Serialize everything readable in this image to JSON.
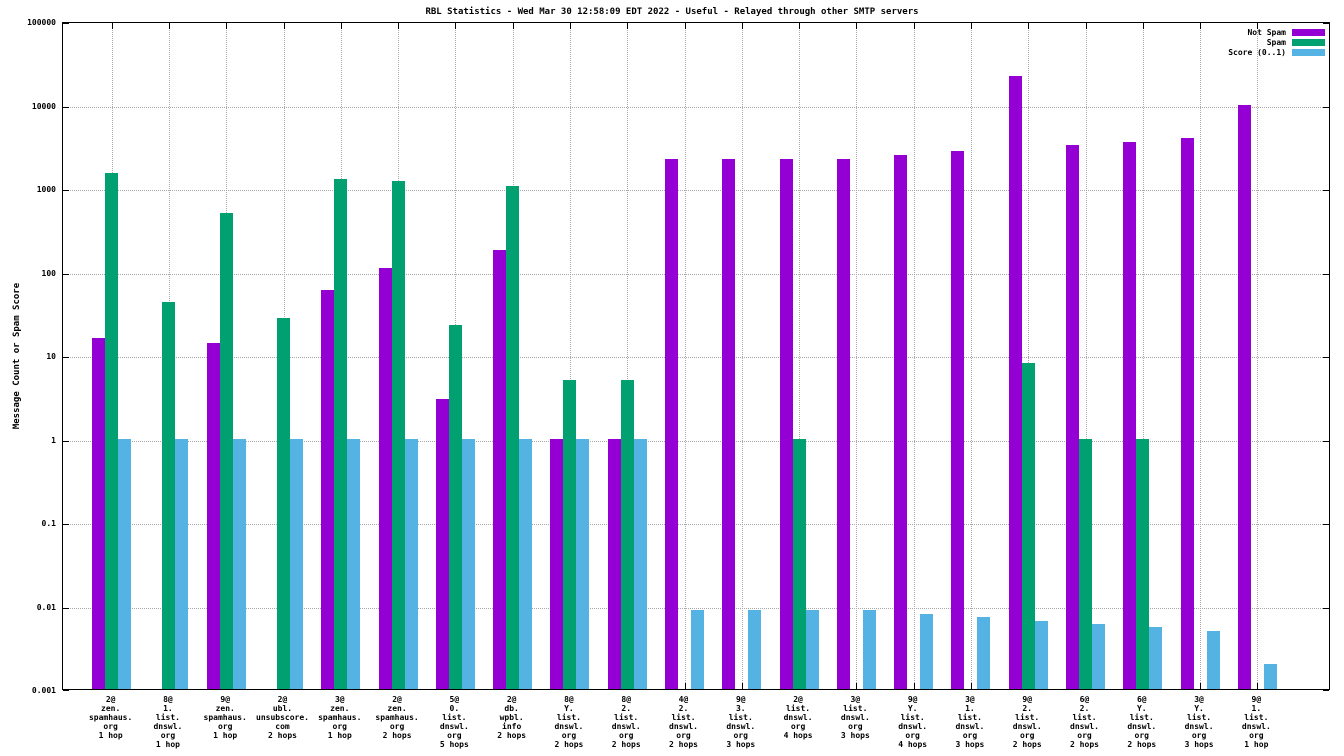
{
  "title": "RBL Statistics - Wed Mar 30 12:58:09 EDT 2022 - Useful - Relayed through other SMTP servers",
  "ylabel": "Message Count or Spam Score",
  "chart_data": {
    "type": "bar",
    "yscale": "log",
    "ylim": [
      0.001,
      100000
    ],
    "grid": true,
    "legend_position": "top-right-inside",
    "ytick_values": [
      100000,
      10000,
      1000,
      100,
      10,
      1,
      0.1,
      0.01,
      0.001
    ],
    "ytick_labels": [
      "100000",
      "10000",
      "1000",
      "100",
      "10",
      "1",
      "0.1",
      "0.01",
      "0.001"
    ],
    "categories": [
      [
        "2@",
        "zen.",
        "spamhaus.",
        "org",
        "1 hop"
      ],
      [
        "8@",
        "1.",
        "list.",
        "dnswl.",
        "org",
        "1 hop"
      ],
      [
        "9@",
        "zen.",
        "spamhaus.",
        "org",
        "1 hop"
      ],
      [
        "2@",
        "ubl.",
        "unsubscore.",
        "com",
        "2 hops"
      ],
      [
        "3@",
        "zen.",
        "spamhaus.",
        "org",
        "1 hop"
      ],
      [
        "2@",
        "zen.",
        "spamhaus.",
        "org",
        "2 hops"
      ],
      [
        "5@",
        "0.",
        "list.",
        "dnswl.",
        "org",
        "5 hops"
      ],
      [
        "2@",
        "db.",
        "wpbl.",
        "info",
        "2 hops"
      ],
      [
        "8@",
        "Y.",
        "list.",
        "dnswl.",
        "org",
        "2 hops"
      ],
      [
        "8@",
        "2.",
        "list.",
        "dnswl.",
        "org",
        "2 hops"
      ],
      [
        "4@",
        "2.",
        "list.",
        "dnswl.",
        "org",
        "2 hops"
      ],
      [
        "9@",
        "3.",
        "list.",
        "dnswl.",
        "org",
        "3 hops"
      ],
      [
        "2@",
        "list.",
        "dnswl.",
        "org",
        "4 hops"
      ],
      [
        "3@",
        "list.",
        "dnswl.",
        "org",
        "3 hops"
      ],
      [
        "9@",
        "Y.",
        "list.",
        "dnswl.",
        "org",
        "4 hops"
      ],
      [
        "3@",
        "1.",
        "list.",
        "dnswl.",
        "org",
        "3 hops"
      ],
      [
        "9@",
        "2.",
        "list.",
        "dnswl.",
        "org",
        "2 hops"
      ],
      [
        "6@",
        "2.",
        "list.",
        "dnswl.",
        "org",
        "2 hops"
      ],
      [
        "6@",
        "Y.",
        "list.",
        "dnswl.",
        "org",
        "2 hops"
      ],
      [
        "3@",
        "Y.",
        "list.",
        "dnswl.",
        "org",
        "3 hops"
      ],
      [
        "9@",
        "1.",
        "list.",
        "dnswl.",
        "org",
        "1 hop"
      ]
    ],
    "series": [
      {
        "name": "Not Spam",
        "key": "not-spam",
        "color": "#9400d3",
        "values": [
          16,
          null,
          14,
          null,
          60,
          110,
          3,
          180,
          1,
          1,
          2200,
          2250,
          2250,
          2250,
          2500,
          2800,
          22000,
          3300,
          3600,
          4000,
          9800
        ]
      },
      {
        "name": "Spam",
        "key": "spam",
        "color": "#00a070",
        "values": [
          1500,
          43,
          500,
          28,
          1300,
          1200,
          23,
          1050,
          5,
          5,
          null,
          null,
          1,
          null,
          null,
          null,
          8,
          1,
          1,
          null,
          null
        ]
      },
      {
        "name": "Score (0..1)",
        "key": "score",
        "color": "#55b3e3",
        "values": [
          1,
          1,
          1,
          1,
          1,
          1,
          1,
          1,
          1,
          1,
          0.0088,
          0.0088,
          0.0088,
          0.0088,
          0.008,
          0.0072,
          0.0065,
          0.006,
          0.0055,
          0.005,
          0.002
        ]
      }
    ]
  }
}
